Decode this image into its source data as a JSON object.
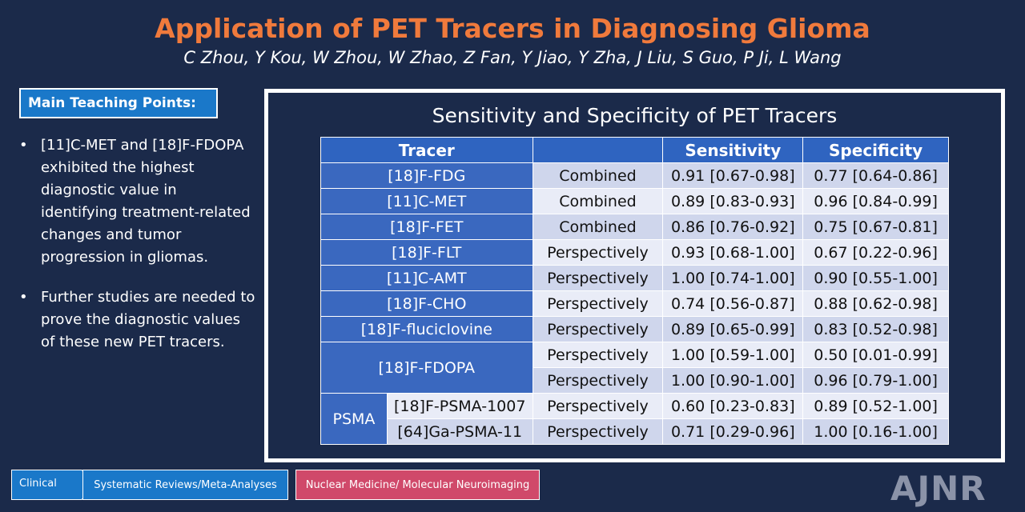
{
  "header": {
    "title": "Application of PET Tracers in Diagnosing Glioma",
    "authors": "C Zhou, Y Kou, W Zhou, W Zhao, Z Fan, Y Jiao, Y Zha, J Liu, S Guo, P Ji, L Wang"
  },
  "teaching": {
    "heading": "Main Teaching Points:",
    "bullet_symbol": "•",
    "points": [
      "[11]C-MET and [18]F-FDOPA exhibited the highest diagnostic value in identifying treatment-related changes and tumor progression in gliomas.",
      "Further studies are needed to prove the diagnostic values of these new PET tracers."
    ]
  },
  "table": {
    "title": "Sensitivity and Specificity of PET Tracers",
    "headers": {
      "tracer": "Tracer",
      "type": "",
      "sensitivity": "Sensitivity",
      "specificity": "Specificity"
    },
    "rows": [
      {
        "tracer": "[18]F-FDG",
        "type": "Combined",
        "sensitivity": "0.91 [0.67-0.98]",
        "specificity": "0.77 [0.64-0.86]"
      },
      {
        "tracer": "[11]C-MET",
        "type": "Combined",
        "sensitivity": "0.89 [0.83-0.93]",
        "specificity": "0.96 [0.84-0.99]"
      },
      {
        "tracer": "[18]F-FET",
        "type": "Combined",
        "sensitivity": "0.86 [0.76-0.92]",
        "specificity": "0.75 [0.67-0.81]"
      },
      {
        "tracer": "[18]F-FLT",
        "type": "Perspectively",
        "sensitivity": "0.93 [0.68-1.00]",
        "specificity": "0.67 [0.22-0.96]"
      },
      {
        "tracer": "[11]C-AMT",
        "type": "Perspectively",
        "sensitivity": "1.00 [0.74-1.00]",
        "specificity": "0.90 [0.55-1.00]"
      },
      {
        "tracer": "[18]F-CHO",
        "type": "Perspectively",
        "sensitivity": "0.74 [0.56-0.87]",
        "specificity": "0.88 [0.62-0.98]"
      },
      {
        "tracer": "[18]F-fluciclovine",
        "type": "Perspectively",
        "sensitivity": "0.89 [0.65-0.99]",
        "specificity": "0.83 [0.52-0.98]"
      }
    ],
    "fdopa": {
      "tracer": "[18]F-FDOPA",
      "rows": [
        {
          "type": "Perspectively",
          "sensitivity": "1.00 [0.59-1.00]",
          "specificity": "0.50 [0.01-0.99]"
        },
        {
          "type": "Perspectively",
          "sensitivity": "1.00 [0.90-1.00]",
          "specificity": "0.96 [0.79-1.00]"
        }
      ]
    },
    "psma": {
      "group": "PSMA",
      "rows": [
        {
          "tracer": "[18]F-PSMA-1007",
          "type": "Perspectively",
          "sensitivity": "0.60 [0.23-0.83]",
          "specificity": "0.89 [0.52-1.00]"
        },
        {
          "tracer": "[64]Ga-PSMA-11",
          "type": "Perspectively",
          "sensitivity": "0.71 [0.29-0.96]",
          "specificity": "1.00 [0.16-1.00]"
        }
      ]
    }
  },
  "footer": {
    "tag_clinical": "Clinical",
    "tag_systematic": "Systematic Reviews/Meta-Analyses",
    "tag_nuclear": "Nuclear Medicine/ Molecular Neuroimaging",
    "logo": "AJNR"
  }
}
